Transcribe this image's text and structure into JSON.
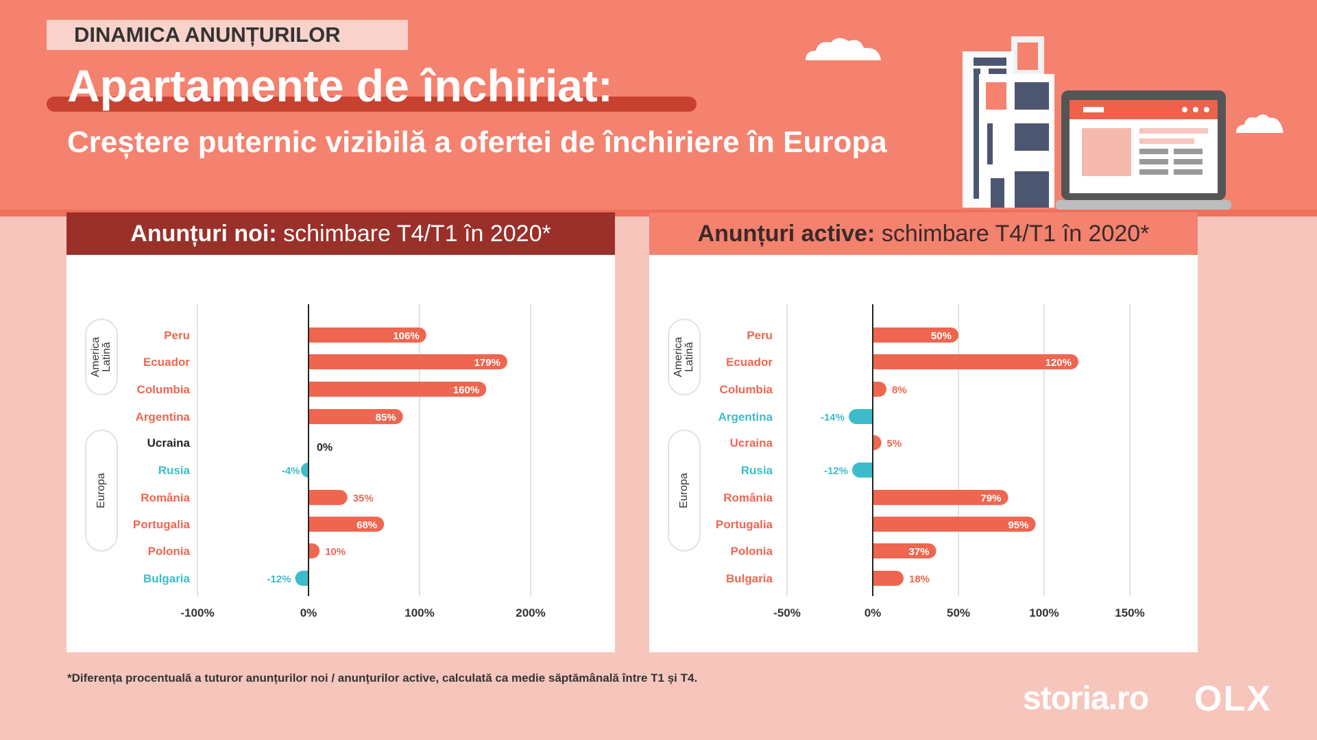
{
  "header": {
    "tag": "DINAMICA ANUNȚURILOR",
    "title": "Apartamente de închiriat:",
    "subtitle": "Creștere puternic vizibilă a ofertei de închiriere în Europa"
  },
  "colors": {
    "positive": "#ef6650",
    "negative": "#3cbccb",
    "neutral": "#222222",
    "header_bg": "#f4826f",
    "page_bg": "#f6c6bd",
    "left_panel_header": "#9b2f29",
    "right_panel_header": "#f4826f"
  },
  "panels": {
    "left": {
      "title_bold": "Anunțuri noi:",
      "title_rest": " schimbare T4/T1 în 2020*"
    },
    "right": {
      "title_bold": "Anunțuri active:",
      "title_rest": " schimbare T4/T1 în 2020*"
    }
  },
  "groups": [
    {
      "label_lines": [
        "America",
        "Latină"
      ],
      "countries": [
        "Peru",
        "Ecuador",
        "Columbia",
        "Argentina"
      ]
    },
    {
      "label_lines": [
        "Europa"
      ],
      "countries": [
        "Ucraina",
        "Rusia",
        "România",
        "Portugalia",
        "Polonia",
        "Bulgaria"
      ]
    }
  ],
  "chart_data": [
    {
      "type": "bar",
      "orientation": "horizontal",
      "title": "Anunțuri noi: schimbare T4/T1 în 2020*",
      "categories": [
        "Peru",
        "Ecuador",
        "Columbia",
        "Argentina",
        "Ucraina",
        "Rusia",
        "România",
        "Portugalia",
        "Polonia",
        "Bulgaria"
      ],
      "values": [
        106,
        179,
        160,
        85,
        0,
        -4,
        35,
        68,
        10,
        -12
      ],
      "value_labels": [
        "106%",
        "179%",
        "160%",
        "85%",
        "0%",
        "-4%",
        "35%",
        "68%",
        "10%",
        "-12%"
      ],
      "xlim": [
        -100,
        200
      ],
      "ticks": [
        -100,
        0,
        100,
        200
      ],
      "tick_labels": [
        "-100%",
        "0%",
        "100%",
        "200%"
      ],
      "grid": true
    },
    {
      "type": "bar",
      "orientation": "horizontal",
      "title": "Anunțuri active: schimbare T4/T1 în 2020*",
      "categories": [
        "Peru",
        "Ecuador",
        "Columbia",
        "Argentina",
        "Ucraina",
        "Rusia",
        "România",
        "Portugalia",
        "Polonia",
        "Bulgaria"
      ],
      "values": [
        50,
        120,
        8,
        -14,
        5,
        -12,
        79,
        95,
        37,
        18
      ],
      "value_labels": [
        "50%",
        "120%",
        "8%",
        "-14%",
        "5%",
        "-12%",
        "79%",
        "95%",
        "37%",
        "18%"
      ],
      "xlim": [
        -50,
        150
      ],
      "ticks": [
        -50,
        0,
        50,
        100,
        150
      ],
      "tick_labels": [
        "-50%",
        "0%",
        "50%",
        "100%",
        "150%"
      ],
      "grid": true
    }
  ],
  "footnote": "*Diferența procentuală a tuturor anunțurilor noi / anunțurilor active, calculată ca medie săptămânală între T1 și T4.",
  "brand": {
    "storia": "storia.ro",
    "olx": "OLX"
  }
}
